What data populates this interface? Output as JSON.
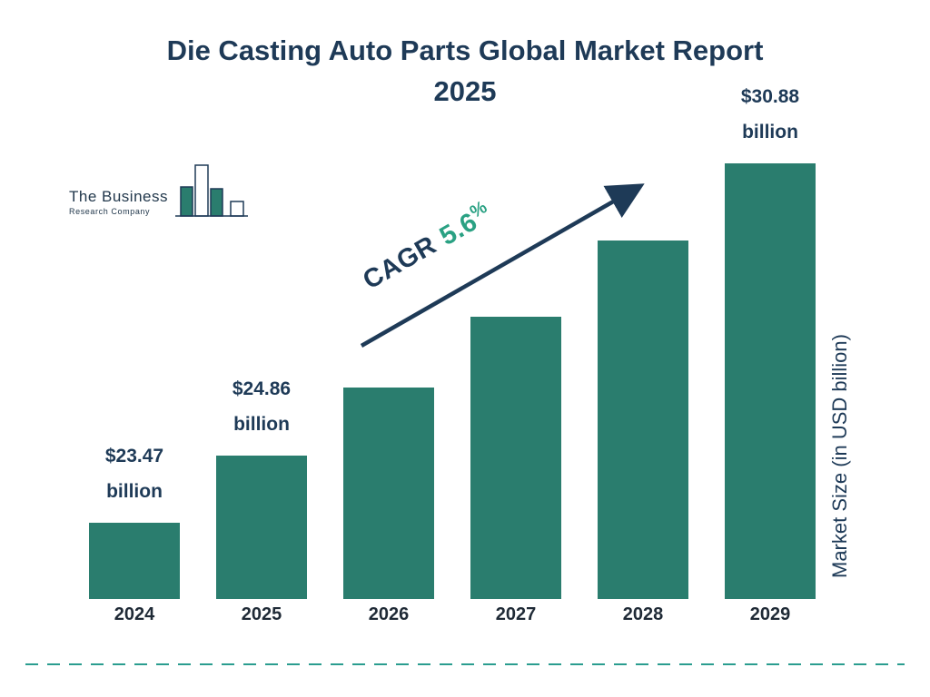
{
  "title": {
    "line1": "Die Casting Auto Parts Global Market Report",
    "line2": "2025"
  },
  "logo": {
    "name": "The Business",
    "subtitle": "Research Company"
  },
  "chart_data": {
    "type": "bar",
    "categories": [
      "2024",
      "2025",
      "2026",
      "2027",
      "2028",
      "2029"
    ],
    "values": [
      23.47,
      24.86,
      26.25,
      27.72,
      29.28,
      30.88
    ],
    "series": [
      {
        "name": "Market Size (in USD billion)",
        "values": [
          23.47,
          24.86,
          26.25,
          27.72,
          29.28,
          30.88
        ]
      }
    ],
    "annotations": [
      {
        "index": 0,
        "line1": "$23.47",
        "line2": "billion"
      },
      {
        "index": 1,
        "line1": "$24.86",
        "line2": "billion"
      },
      {
        "index": 5,
        "line1": "$30.88",
        "line2": "billion"
      }
    ],
    "cagr": {
      "label": "CAGR",
      "value": "5.6",
      "percent": "%"
    },
    "title": "Die Casting Auto Parts Global Market Report 2025",
    "xlabel": "",
    "ylabel": "Market Size (in USD billion)",
    "ylim": [
      21.9,
      31.5
    ],
    "grid": false,
    "legend": "none"
  },
  "colors": {
    "title_navy": "#1e3a57",
    "bar_teal": "#2a7d6e",
    "cagr_green": "#2aa183",
    "dashed_teal": "#2a9d8f",
    "axis_text": "#1f2a36"
  }
}
